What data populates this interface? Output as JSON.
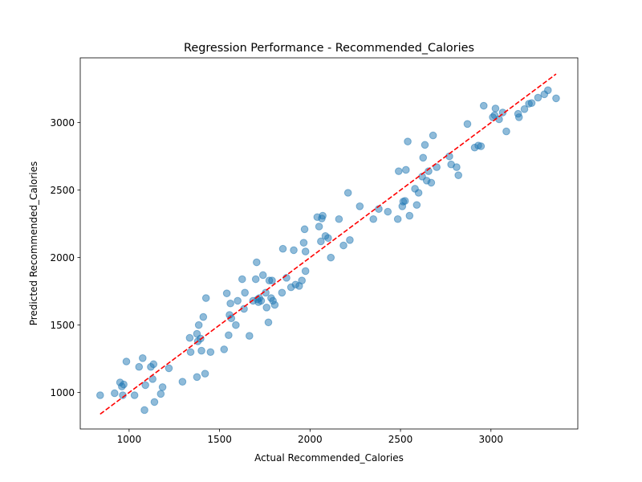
{
  "chart_data": {
    "type": "scatter",
    "title": "Regression Performance - Recommended_Calories",
    "xlabel": "Actual Recommended_Calories",
    "ylabel": "Predicted Recommended_Calories",
    "xlim": [
      730,
      3480
    ],
    "ylim": [
      730,
      3480
    ],
    "xticks": [
      1000,
      1500,
      2000,
      2500,
      3000
    ],
    "yticks": [
      1000,
      1500,
      2000,
      2500,
      3000
    ],
    "grid": false,
    "point_color": "#1f77b4",
    "reference_line": {
      "style": "dashed",
      "color": "#ff0000",
      "from": [
        840,
        840
      ],
      "to": [
        3360,
        3360
      ]
    },
    "points": [
      [
        840,
        980
      ],
      [
        920,
        995
      ],
      [
        950,
        1075
      ],
      [
        960,
        1045
      ],
      [
        965,
        980
      ],
      [
        970,
        1060
      ],
      [
        985,
        1230
      ],
      [
        1030,
        980
      ],
      [
        1055,
        1190
      ],
      [
        1075,
        1255
      ],
      [
        1085,
        870
      ],
      [
        1090,
        1055
      ],
      [
        1120,
        1190
      ],
      [
        1130,
        1100
      ],
      [
        1135,
        1210
      ],
      [
        1140,
        930
      ],
      [
        1175,
        990
      ],
      [
        1185,
        1040
      ],
      [
        1220,
        1180
      ],
      [
        1295,
        1080
      ],
      [
        1335,
        1405
      ],
      [
        1340,
        1300
      ],
      [
        1375,
        1115
      ],
      [
        1375,
        1435
      ],
      [
        1380,
        1380
      ],
      [
        1385,
        1500
      ],
      [
        1395,
        1400
      ],
      [
        1400,
        1310
      ],
      [
        1410,
        1560
      ],
      [
        1420,
        1140
      ],
      [
        1425,
        1700
      ],
      [
        1450,
        1300
      ],
      [
        1525,
        1320
      ],
      [
        1540,
        1735
      ],
      [
        1550,
        1425
      ],
      [
        1555,
        1575
      ],
      [
        1560,
        1660
      ],
      [
        1565,
        1550
      ],
      [
        1590,
        1500
      ],
      [
        1600,
        1680
      ],
      [
        1625,
        1840
      ],
      [
        1635,
        1620
      ],
      [
        1640,
        1740
      ],
      [
        1665,
        1420
      ],
      [
        1685,
        1680
      ],
      [
        1700,
        1840
      ],
      [
        1705,
        1965
      ],
      [
        1710,
        1690
      ],
      [
        1715,
        1670
      ],
      [
        1720,
        1700
      ],
      [
        1730,
        1680
      ],
      [
        1740,
        1870
      ],
      [
        1755,
        1740
      ],
      [
        1760,
        1630
      ],
      [
        1770,
        1520
      ],
      [
        1775,
        1830
      ],
      [
        1785,
        1700
      ],
      [
        1790,
        1830
      ],
      [
        1795,
        1680
      ],
      [
        1805,
        1650
      ],
      [
        1845,
        1740
      ],
      [
        1850,
        2065
      ],
      [
        1870,
        1850
      ],
      [
        1895,
        1780
      ],
      [
        1910,
        2055
      ],
      [
        1920,
        1800
      ],
      [
        1940,
        1790
      ],
      [
        1955,
        1830
      ],
      [
        1965,
        2110
      ],
      [
        1970,
        2210
      ],
      [
        1975,
        1900
      ],
      [
        1975,
        2045
      ],
      [
        2040,
        2300
      ],
      [
        2050,
        2230
      ],
      [
        2060,
        2120
      ],
      [
        2065,
        2290
      ],
      [
        2070,
        2310
      ],
      [
        2085,
        2160
      ],
      [
        2100,
        2145
      ],
      [
        2115,
        2000
      ],
      [
        2160,
        2285
      ],
      [
        2185,
        2090
      ],
      [
        2210,
        2480
      ],
      [
        2220,
        2130
      ],
      [
        2275,
        2380
      ],
      [
        2350,
        2285
      ],
      [
        2380,
        2360
      ],
      [
        2430,
        2340
      ],
      [
        2485,
        2285
      ],
      [
        2490,
        2640
      ],
      [
        2510,
        2380
      ],
      [
        2515,
        2415
      ],
      [
        2525,
        2420
      ],
      [
        2530,
        2650
      ],
      [
        2540,
        2860
      ],
      [
        2550,
        2310
      ],
      [
        2580,
        2510
      ],
      [
        2590,
        2390
      ],
      [
        2600,
        2480
      ],
      [
        2620,
        2600
      ],
      [
        2625,
        2740
      ],
      [
        2635,
        2835
      ],
      [
        2645,
        2570
      ],
      [
        2655,
        2640
      ],
      [
        2670,
        2555
      ],
      [
        2680,
        2905
      ],
      [
        2700,
        2670
      ],
      [
        2770,
        2750
      ],
      [
        2780,
        2690
      ],
      [
        2810,
        2670
      ],
      [
        2820,
        2610
      ],
      [
        2870,
        2990
      ],
      [
        2910,
        2815
      ],
      [
        2930,
        2830
      ],
      [
        2945,
        2825
      ],
      [
        2960,
        3125
      ],
      [
        3010,
        3040
      ],
      [
        3020,
        3055
      ],
      [
        3025,
        3105
      ],
      [
        3045,
        3025
      ],
      [
        3065,
        3075
      ],
      [
        3085,
        2935
      ],
      [
        3150,
        3065
      ],
      [
        3155,
        3040
      ],
      [
        3185,
        3100
      ],
      [
        3210,
        3140
      ],
      [
        3225,
        3145
      ],
      [
        3260,
        3185
      ],
      [
        3295,
        3210
      ],
      [
        3315,
        3240
      ],
      [
        3360,
        3180
      ]
    ]
  }
}
